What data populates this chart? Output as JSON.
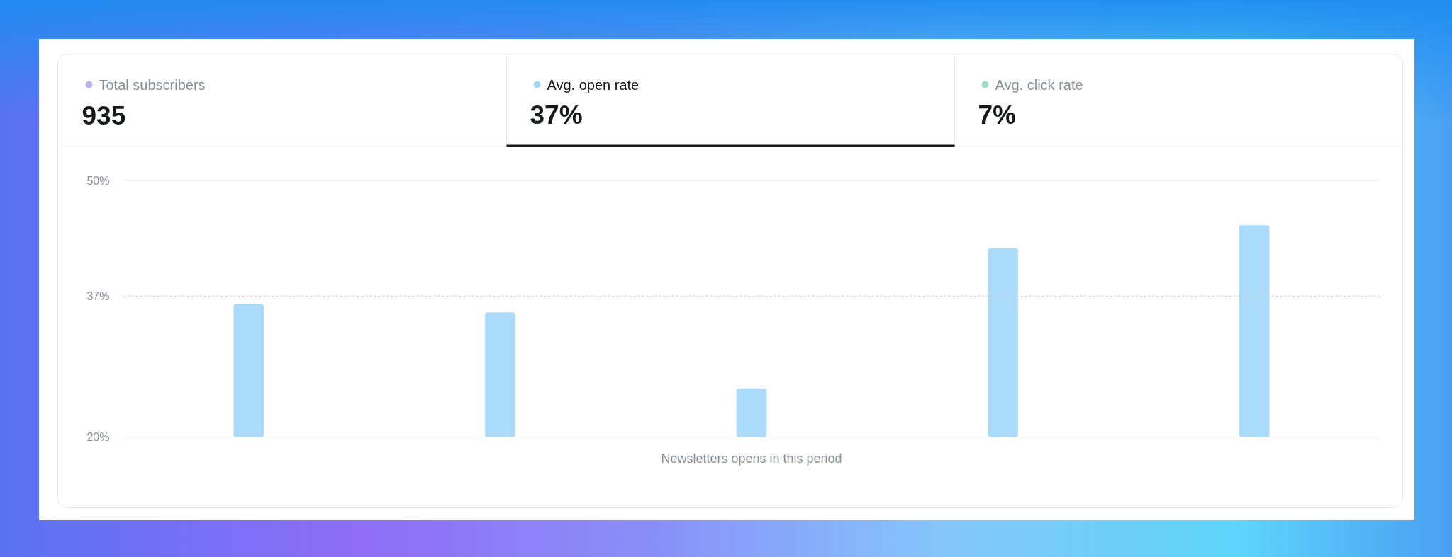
{
  "chart_data": [
    {
      "type": "other",
      "categories": [
        "Total subscribers",
        "Avg. open rate",
        "Avg. click rate"
      ],
      "value_labels": [
        "935",
        "37%",
        "7%"
      ],
      "colors": [
        "#b3b5f3",
        "#a5d8f8",
        "#a3dccb"
      ]
    },
    {
      "type": "bar",
      "categories": [
        null,
        null,
        null,
        null,
        null
      ],
      "values": [
        35.6,
        34.6,
        25.7,
        42.1,
        44.8
      ],
      "color": "#aadbfb",
      "xlabel": "Newsletters opens in this period",
      "ylim": [
        20,
        50
      ],
      "yticks": [
        {
          "value": 20,
          "label": "20%"
        },
        {
          "value": 50,
          "label": "50%"
        }
      ],
      "grid": "y",
      "ref_lines": [
        {
          "axis": "y",
          "value": 36.5,
          "label": "37%",
          "color": "#c9cdd2",
          "line_style": "dashed"
        }
      ]
    }
  ]
}
